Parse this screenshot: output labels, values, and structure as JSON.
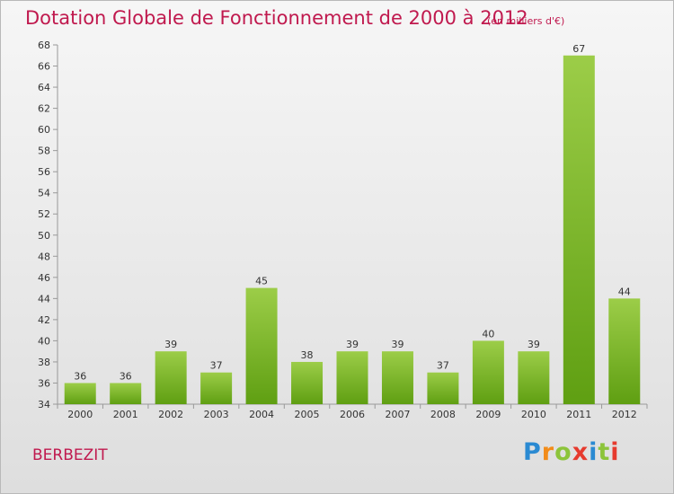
{
  "title": "Dotation Globale de Fonctionnement de 2000 à 2012",
  "subtitle": "(en milliers d'€)",
  "commune": "BERBEZIT",
  "logo": {
    "text": "Proxiti",
    "colors": [
      "#2a8ad2",
      "#f28c1a",
      "#8cc43a",
      "#e63a2e",
      "#2a8ad2",
      "#8cc43a",
      "#e63a2e"
    ]
  },
  "colors": {
    "bar_top": "#9ccd48",
    "bar_bottom": "#5f9f12",
    "title": "#c0194e",
    "grid": "#999999"
  },
  "chart_data": {
    "type": "bar",
    "title": "Dotation Globale de Fonctionnement de 2000 à 2012",
    "subtitle": "(en milliers d'€)",
    "categories": [
      "2000",
      "2001",
      "2002",
      "2003",
      "2004",
      "2005",
      "2006",
      "2007",
      "2008",
      "2009",
      "2010",
      "2011",
      "2012"
    ],
    "values": [
      36,
      36,
      39,
      37,
      45,
      38,
      39,
      39,
      37,
      40,
      39,
      67,
      44
    ],
    "ylim": [
      34,
      68
    ],
    "yticks": [
      34,
      36,
      38,
      40,
      42,
      44,
      46,
      48,
      50,
      52,
      54,
      56,
      58,
      60,
      62,
      64,
      66,
      68
    ],
    "grid": false,
    "data_labels": true
  }
}
